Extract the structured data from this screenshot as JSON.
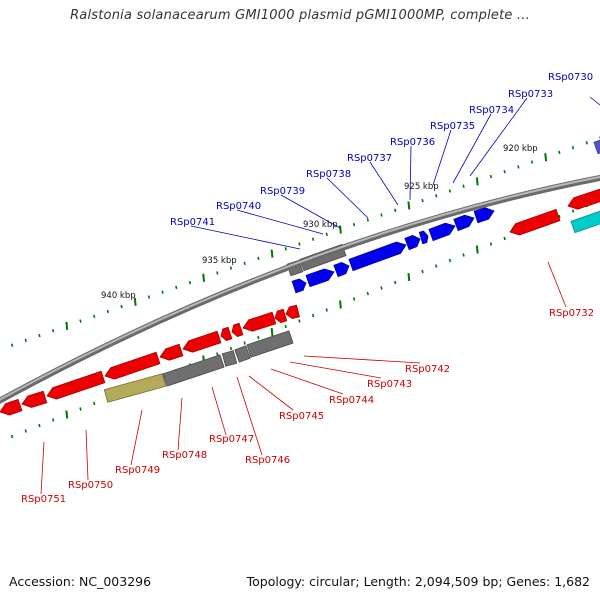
{
  "title": "Ralstonia solanacearum GMI1000 plasmid pGMI1000MP, complete ...",
  "footer": {
    "accession": "Accession: NC_003296",
    "info": "Topology: circular; Length: 2,094,509 bp; Genes: 1,682"
  },
  "colors": {
    "backbone": "#8a8a8a",
    "forward_gene": "#0000ee",
    "reverse_gene": "#ee0000",
    "gray_gene": "#6f6f6f",
    "olive_gene": "#b5a95a",
    "cyan_gene": "#00cccc",
    "purple_gene": "#5a4fc8",
    "tick": "#007700",
    "forward_label": "#0000bb",
    "reverse_label": "#cc0000"
  },
  "scale_labels": [
    "920 kbp",
    "925 kbp",
    "930 kbp",
    "935 kbp",
    "940 kbp"
  ],
  "forward_labels": [
    "RSp0730",
    "RSp0733",
    "RSp0734",
    "RSp0735",
    "RSp0736",
    "RSp0737",
    "RSp0738",
    "RSp0739",
    "RSp0740",
    "RSp0741"
  ],
  "reverse_labels": [
    "RSp0732",
    "RSp0742",
    "RSp0743",
    "RSp0744",
    "RSp0745",
    "RSp0746",
    "RSp0747",
    "RSp0748",
    "RSp0749",
    "RSp0750",
    "RSp0751"
  ]
}
